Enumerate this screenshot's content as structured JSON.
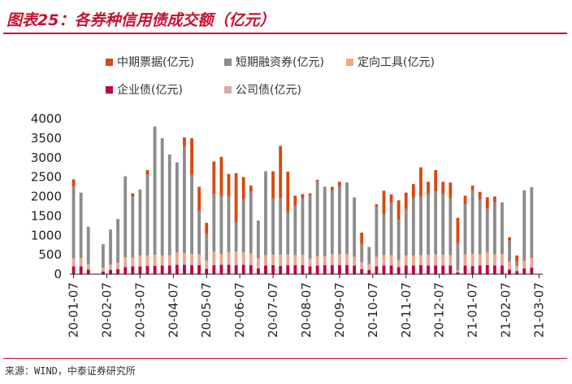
{
  "title": "图表25：各券种信用债成交额（亿元）",
  "source": "来源：WIND，中泰证券研究所",
  "colors": {
    "mtn": "#d9480f",
    "scp": "#8c8c8c",
    "ppn": "#f4a582",
    "ent": "#c0003c",
    "corp": "#d7a9a9",
    "title": "#c8102e"
  },
  "legend": [
    {
      "key": "mtn",
      "label": "中期票据(亿元)"
    },
    {
      "key": "scp",
      "label": "短期融资券(亿元)"
    },
    {
      "key": "ppn",
      "label": "定向工具(亿元)"
    },
    {
      "key": "ent",
      "label": "企业债(亿元)"
    },
    {
      "key": "corp",
      "label": "公司债(亿元)"
    }
  ],
  "chart_data": {
    "type": "bar",
    "stacked": true,
    "ylim": [
      0,
      4000
    ],
    "yticks": [
      0,
      500,
      1000,
      1500,
      2000,
      2500,
      3000,
      3500,
      4000
    ],
    "xtick_labels": [
      "20-01-07",
      "20-02-07",
      "20-03-07",
      "20-04-07",
      "20-05-07",
      "20-06-07",
      "20-07-07",
      "20-08-07",
      "20-09-07",
      "20-10-07",
      "20-11-07",
      "20-12-07",
      "21-01-07",
      "21-02-07",
      "21-03-07"
    ],
    "grid": false,
    "legend_position": "top",
    "n_bars": 64,
    "totals": [
      2440,
      2100,
      1220,
      0,
      770,
      1150,
      1420,
      2520,
      2080,
      2180,
      2680,
      3800,
      3500,
      3080,
      2880,
      3520,
      3500,
      2250,
      1320,
      2900,
      3020,
      2580,
      2600,
      2500,
      2280,
      1380,
      2650,
      2650,
      3300,
      2640,
      2020,
      2060,
      2080,
      2430,
      2250,
      2250,
      2380,
      2360,
      1980,
      1070,
      700,
      1800,
      2150,
      2050,
      1900,
      2100,
      2320,
      2750,
      2380,
      2680,
      2380,
      2360,
      1450,
      2020,
      2280,
      2120,
      1980,
      2000,
      1850,
      950,
      480,
      2160,
      2240,
      0
    ],
    "series": [
      {
        "name": "中期票据(亿元)",
        "key": "mtn",
        "values": [
          180,
          0,
          0,
          0,
          0,
          0,
          0,
          0,
          80,
          0,
          120,
          0,
          0,
          0,
          0,
          220,
          940,
          620,
          280,
          840,
          1000,
          560,
          1260,
          570,
          160,
          0,
          0,
          700,
          1350,
          1040,
          260,
          100,
          50,
          30,
          0,
          100,
          120,
          0,
          0,
          300,
          0,
          60,
          600,
          210,
          500,
          420,
          350,
          750,
          320,
          550,
          310,
          400,
          650,
          210,
          120,
          200,
          300,
          150,
          0,
          80,
          150,
          0,
          0,
          0
        ]
      },
      {
        "name": "短期融资券(亿元)",
        "key": "scp",
        "values": [
          1850,
          1680,
          960,
          0,
          600,
          900,
          1130,
          2080,
          1570,
          1700,
          2080,
          3300,
          3020,
          2590,
          2320,
          2760,
          2040,
          1120,
          690,
          1480,
          1500,
          1460,
          760,
          1370,
          1580,
          970,
          2160,
          1450,
          1450,
          1090,
          1270,
          1460,
          1630,
          1940,
          1790,
          1630,
          1750,
          1840,
          1530,
          460,
          440,
          1290,
          1060,
          1350,
          1040,
          1200,
          1490,
          1510,
          1560,
          1620,
          1570,
          1470,
          700,
          1300,
          1640,
          1410,
          1110,
          1340,
          1330,
          550,
          120,
          1820,
          1820,
          0
        ]
      },
      {
        "name": "定向工具(亿元)",
        "key": "ppn",
        "values": [
          110,
          140,
          60,
          0,
          60,
          70,
          80,
          120,
          160,
          180,
          170,
          200,
          170,
          180,
          200,
          200,
          170,
          170,
          110,
          220,
          170,
          200,
          230,
          200,
          200,
          140,
          150,
          150,
          160,
          180,
          160,
          150,
          100,
          130,
          140,
          180,
          150,
          190,
          140,
          50,
          70,
          150,
          160,
          170,
          90,
          150,
          150,
          150,
          170,
          180,
          170,
          170,
          50,
          190,
          210,
          180,
          220,
          180,
          160,
          120,
          50,
          100,
          160,
          0
        ]
      },
      {
        "name": "企业债(亿元)",
        "key": "ent",
        "values": [
          200,
          200,
          120,
          0,
          70,
          110,
          130,
          180,
          200,
          200,
          210,
          210,
          220,
          220,
          240,
          240,
          230,
          230,
          140,
          230,
          240,
          240,
          230,
          240,
          230,
          150,
          220,
          230,
          210,
          230,
          230,
          230,
          200,
          220,
          230,
          230,
          230,
          230,
          220,
          130,
          110,
          200,
          220,
          220,
          180,
          220,
          220,
          230,
          220,
          220,
          220,
          220,
          50,
          220,
          210,
          220,
          230,
          220,
          220,
          120,
          80,
          150,
          170,
          0
        ]
      },
      {
        "name": "公司债(亿元)",
        "key": "corp",
        "values": [
          100,
          80,
          80,
          0,
          40,
          70,
          80,
          140,
          70,
          100,
          100,
          90,
          90,
          90,
          120,
          100,
          120,
          110,
          100,
          130,
          110,
          120,
          120,
          120,
          110,
          120,
          120,
          120,
          130,
          100,
          100,
          120,
          100,
          110,
          90,
          110,
          130,
          100,
          90,
          130,
          80,
          100,
          110,
          100,
          90,
          110,
          110,
          110,
          110,
          110,
          110,
          100,
          0,
          100,
          100,
          110,
          120,
          110,
          140,
          80,
          80,
          90,
          90,
          0
        ]
      }
    ]
  }
}
